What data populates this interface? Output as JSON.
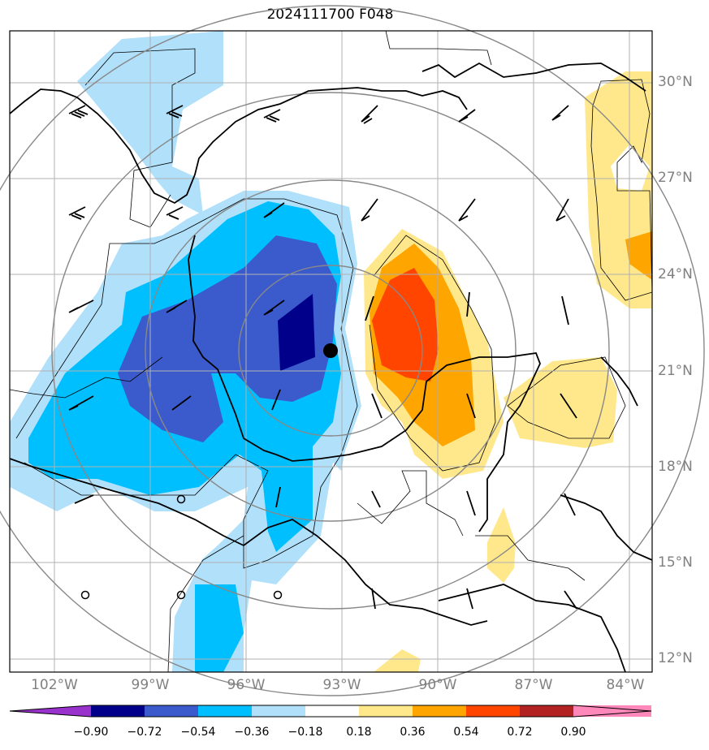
{
  "title": "2024111700 F048",
  "lat_ticks": [
    "30°N",
    "27°N",
    "24°N",
    "21°N",
    "18°N",
    "15°N",
    "12°N"
  ],
  "lon_ticks": [
    "102°W",
    "99°W",
    "96°W",
    "93°W",
    "90°W",
    "87°W",
    "84°W"
  ],
  "colorbar": {
    "labels": [
      "−0.90",
      "−0.72",
      "−0.54",
      "−0.36",
      "−0.18",
      "0.18",
      "0.36",
      "0.54",
      "0.72",
      "0.90"
    ],
    "colors": [
      "#9932cc",
      "#00008b",
      "#3b5bcc",
      "#00bfff",
      "#b0e0fa",
      "#ffffff",
      "#ffe88c",
      "#ffa500",
      "#ff4500",
      "#b22222",
      "#ff88bb"
    ]
  },
  "storm_center": {
    "lat": 21.6,
    "lon": -93.3
  },
  "colors": {
    "grid": "#b0b0b0",
    "ring": "#888888",
    "coast": "#000000",
    "tick_text": "#808080"
  }
}
